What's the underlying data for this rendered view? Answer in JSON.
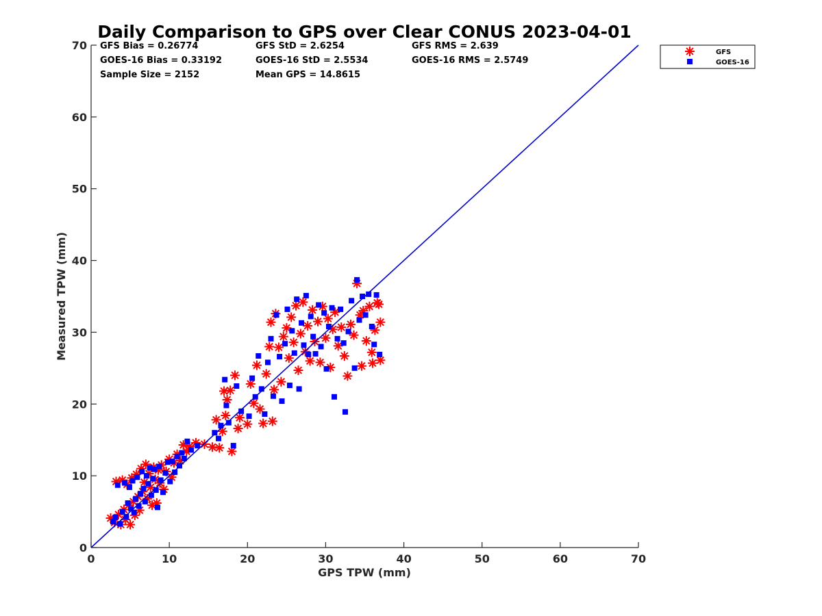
{
  "chart_data": {
    "type": "scatter",
    "title": "Daily Comparison to GPS over Clear CONUS 2023-04-01",
    "xlabel": "GPS TPW (mm)",
    "ylabel": "Measured TPW (mm)",
    "xlim": [
      0,
      70
    ],
    "ylim": [
      0,
      70
    ],
    "xticks": [
      "0",
      "10",
      "20",
      "30",
      "40",
      "50",
      "60",
      "70"
    ],
    "yticks": [
      "0",
      "10",
      "20",
      "30",
      "40",
      "50",
      "60",
      "70"
    ],
    "legend_position": "top-right outside",
    "stats": [
      "GFS Bias = 0.26774",
      "GFS StD = 2.6254",
      "GFS RMS = 2.639",
      "GOES-16 Bias = 0.33192",
      "GOES-16 StD = 2.5534",
      "GOES-16 RMS = 2.5749",
      "Sample Size = 2152",
      "Mean GPS = 14.8615"
    ],
    "reference_line": {
      "name": "1:1 line",
      "x": [
        0,
        70
      ],
      "y": [
        0,
        70
      ],
      "color": "#0000cc"
    },
    "series": [
      {
        "name": "GFS",
        "marker": "asterisk",
        "color": "#ff0000",
        "points": [
          [
            2.5,
            4.1
          ],
          [
            3.0,
            3.5
          ],
          [
            3.2,
            9.2
          ],
          [
            3.5,
            4.6
          ],
          [
            3.8,
            3.2
          ],
          [
            4.0,
            9.4
          ],
          [
            4.2,
            5.3
          ],
          [
            4.4,
            3.9
          ],
          [
            4.6,
            8.8
          ],
          [
            4.8,
            5.9
          ],
          [
            5.0,
            3.2
          ],
          [
            5.2,
            9.7
          ],
          [
            5.4,
            6.4
          ],
          [
            5.6,
            4.5
          ],
          [
            5.8,
            10.2
          ],
          [
            6.0,
            7.1
          ],
          [
            6.2,
            5.2
          ],
          [
            6.4,
            11.0
          ],
          [
            6.6,
            7.8
          ],
          [
            6.8,
            9.1
          ],
          [
            7.0,
            11.6
          ],
          [
            7.2,
            6.8
          ],
          [
            7.4,
            10.3
          ],
          [
            7.6,
            8.4
          ],
          [
            7.8,
            5.9
          ],
          [
            8.0,
            11.2
          ],
          [
            8.2,
            9.5
          ],
          [
            8.4,
            6.2
          ],
          [
            8.6,
            10.8
          ],
          [
            8.8,
            9.0
          ],
          [
            9.0,
            11.5
          ],
          [
            9.3,
            8.1
          ],
          [
            9.6,
            10.6
          ],
          [
            10.0,
            12.3
          ],
          [
            10.3,
            9.8
          ],
          [
            10.6,
            11.8
          ],
          [
            11.0,
            13.0
          ],
          [
            11.4,
            12.1
          ],
          [
            11.8,
            14.3
          ],
          [
            12.2,
            13.4
          ],
          [
            12.6,
            14.1
          ],
          [
            13.4,
            14.6
          ],
          [
            14.5,
            14.4
          ],
          [
            15.5,
            14.0
          ],
          [
            16.0,
            17.8
          ],
          [
            16.4,
            13.9
          ],
          [
            16.8,
            16.2
          ],
          [
            17.0,
            21.8
          ],
          [
            17.2,
            18.4
          ],
          [
            17.4,
            20.6
          ],
          [
            17.8,
            21.9
          ],
          [
            18.0,
            13.4
          ],
          [
            18.4,
            24.0
          ],
          [
            18.8,
            16.6
          ],
          [
            19.0,
            18.1
          ],
          [
            20.0,
            17.2
          ],
          [
            20.4,
            22.8
          ],
          [
            20.8,
            20.1
          ],
          [
            21.2,
            25.4
          ],
          [
            21.6,
            19.3
          ],
          [
            22.0,
            17.3
          ],
          [
            22.4,
            24.2
          ],
          [
            22.8,
            28.0
          ],
          [
            23.0,
            31.4
          ],
          [
            23.2,
            17.6
          ],
          [
            23.4,
            22.0
          ],
          [
            23.6,
            32.6
          ],
          [
            24.0,
            27.9
          ],
          [
            24.3,
            23.1
          ],
          [
            24.6,
            29.4
          ],
          [
            25.0,
            30.6
          ],
          [
            25.3,
            26.4
          ],
          [
            25.6,
            32.1
          ],
          [
            25.9,
            28.6
          ],
          [
            26.2,
            33.7
          ],
          [
            26.5,
            24.7
          ],
          [
            26.8,
            29.8
          ],
          [
            27.1,
            34.2
          ],
          [
            27.4,
            27.3
          ],
          [
            27.7,
            30.9
          ],
          [
            28.0,
            26.0
          ],
          [
            28.3,
            33.1
          ],
          [
            28.6,
            28.7
          ],
          [
            29.0,
            31.5
          ],
          [
            29.3,
            25.8
          ],
          [
            29.6,
            33.6
          ],
          [
            30.0,
            29.2
          ],
          [
            30.3,
            31.9
          ],
          [
            30.6,
            25.1
          ],
          [
            30.9,
            30.4
          ],
          [
            31.2,
            32.8
          ],
          [
            31.6,
            28.1
          ],
          [
            32.0,
            30.7
          ],
          [
            32.4,
            26.7
          ],
          [
            32.8,
            23.9
          ],
          [
            33.2,
            31.1
          ],
          [
            33.6,
            29.6
          ],
          [
            34.0,
            36.8
          ],
          [
            34.4,
            32.4
          ],
          [
            34.8,
            33.0
          ],
          [
            35.2,
            28.8
          ],
          [
            35.6,
            33.6
          ],
          [
            36.0,
            25.7
          ],
          [
            36.3,
            30.3
          ],
          [
            36.6,
            34.1
          ],
          [
            37.0,
            31.4
          ],
          [
            37.0,
            26.1
          ],
          [
            36.8,
            33.9
          ],
          [
            35.9,
            27.2
          ],
          [
            34.6,
            25.3
          ]
        ]
      },
      {
        "name": "GOES-16",
        "marker": "square",
        "color": "#0000ff",
        "points": [
          [
            2.8,
            3.6
          ],
          [
            3.1,
            4.2
          ],
          [
            3.4,
            8.7
          ],
          [
            3.7,
            3.3
          ],
          [
            4.0,
            5.0
          ],
          [
            4.3,
            9.0
          ],
          [
            4.5,
            4.3
          ],
          [
            4.7,
            6.2
          ],
          [
            4.9,
            8.4
          ],
          [
            5.1,
            5.4
          ],
          [
            5.3,
            9.3
          ],
          [
            5.5,
            4.9
          ],
          [
            5.7,
            6.8
          ],
          [
            5.9,
            9.8
          ],
          [
            6.1,
            5.8
          ],
          [
            6.3,
            7.5
          ],
          [
            6.5,
            10.6
          ],
          [
            6.7,
            8.2
          ],
          [
            6.9,
            6.4
          ],
          [
            7.1,
            10.0
          ],
          [
            7.3,
            8.9
          ],
          [
            7.5,
            11.1
          ],
          [
            7.7,
            7.3
          ],
          [
            7.9,
            9.6
          ],
          [
            8.1,
            10.9
          ],
          [
            8.3,
            8.0
          ],
          [
            8.5,
            5.6
          ],
          [
            8.7,
            11.3
          ],
          [
            8.9,
            9.4
          ],
          [
            9.2,
            7.7
          ],
          [
            9.5,
            10.4
          ],
          [
            9.8,
            11.9
          ],
          [
            10.1,
            9.2
          ],
          [
            10.4,
            12.0
          ],
          [
            10.7,
            10.5
          ],
          [
            11.0,
            12.7
          ],
          [
            11.3,
            11.4
          ],
          [
            11.6,
            13.2
          ],
          [
            11.9,
            12.4
          ],
          [
            12.3,
            14.8
          ],
          [
            12.8,
            13.6
          ],
          [
            13.6,
            14.2
          ],
          [
            15.8,
            16.0
          ],
          [
            16.3,
            15.2
          ],
          [
            16.6,
            17.0
          ],
          [
            17.1,
            23.4
          ],
          [
            17.3,
            19.8
          ],
          [
            17.6,
            17.4
          ],
          [
            18.2,
            14.2
          ],
          [
            18.6,
            22.5
          ],
          [
            19.2,
            19.0
          ],
          [
            20.2,
            18.3
          ],
          [
            20.6,
            23.6
          ],
          [
            21.0,
            21.0
          ],
          [
            21.4,
            26.7
          ],
          [
            21.8,
            22.1
          ],
          [
            22.2,
            18.6
          ],
          [
            22.6,
            25.8
          ],
          [
            23.0,
            29.1
          ],
          [
            23.3,
            21.1
          ],
          [
            23.7,
            32.4
          ],
          [
            24.1,
            26.6
          ],
          [
            24.4,
            20.4
          ],
          [
            24.8,
            28.4
          ],
          [
            25.1,
            33.2
          ],
          [
            25.4,
            22.6
          ],
          [
            25.7,
            30.2
          ],
          [
            26.0,
            27.1
          ],
          [
            26.3,
            34.6
          ],
          [
            26.6,
            22.1
          ],
          [
            26.9,
            31.3
          ],
          [
            27.2,
            28.2
          ],
          [
            27.5,
            35.1
          ],
          [
            27.8,
            26.9
          ],
          [
            28.1,
            32.2
          ],
          [
            28.4,
            29.4
          ],
          [
            28.7,
            27.0
          ],
          [
            29.1,
            33.8
          ],
          [
            29.4,
            28.0
          ],
          [
            29.8,
            32.7
          ],
          [
            30.1,
            24.9
          ],
          [
            30.4,
            30.8
          ],
          [
            30.8,
            33.4
          ],
          [
            31.1,
            21.0
          ],
          [
            31.5,
            29.1
          ],
          [
            31.9,
            33.2
          ],
          [
            32.3,
            28.5
          ],
          [
            32.5,
            18.9
          ],
          [
            32.9,
            30.1
          ],
          [
            33.3,
            34.4
          ],
          [
            33.7,
            25.0
          ],
          [
            34.0,
            37.3
          ],
          [
            34.3,
            31.7
          ],
          [
            34.7,
            35.0
          ],
          [
            35.1,
            32.4
          ],
          [
            35.5,
            35.3
          ],
          [
            35.9,
            30.8
          ],
          [
            36.2,
            28.3
          ],
          [
            36.5,
            35.2
          ],
          [
            36.9,
            26.9
          ]
        ]
      }
    ]
  }
}
